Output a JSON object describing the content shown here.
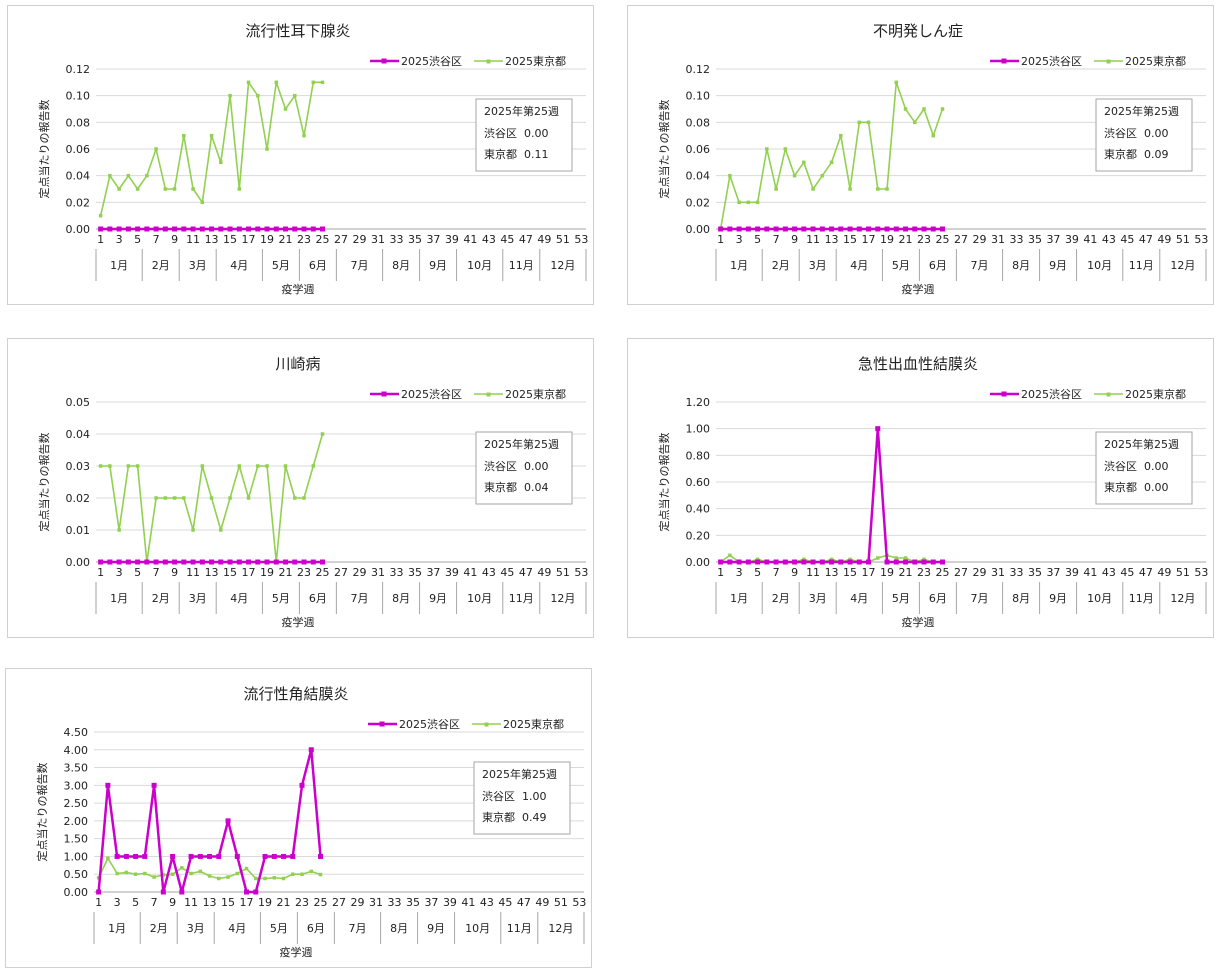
{
  "colors": {
    "shibuya": "#cc00cc",
    "tokyo": "#92d050",
    "grid": "#d9d9d9",
    "axis": "#a6a6a6",
    "text": "#222222"
  },
  "common": {
    "x_label": "疫学週",
    "y_label": "定点当たりの報告数",
    "legend_shibuya": "2025渋谷区",
    "legend_tokyo": "2025東京都",
    "months": [
      "1月",
      "2月",
      "3月",
      "4月",
      "5月",
      "6月",
      "7月",
      "8月",
      "9月",
      "10月",
      "11月",
      "12月"
    ],
    "week_ticks": [
      "1",
      "3",
      "5",
      "7",
      "9",
      "11",
      "13",
      "15",
      "17",
      "19",
      "21",
      "23",
      "25",
      "27",
      "29",
      "31",
      "33",
      "35",
      "37",
      "39",
      "41",
      "43",
      "45",
      "47",
      "49",
      "51",
      "53"
    ]
  },
  "chart_data": [
    {
      "type": "line",
      "title": "流行性耳下腺炎",
      "xlabel": "疫学週",
      "ylabel": "定点当たりの報告数",
      "ylim": [
        0,
        0.12
      ],
      "yticks": [
        "0.00",
        "0.02",
        "0.04",
        "0.06",
        "0.08",
        "0.10",
        "0.12"
      ],
      "x": [
        1,
        2,
        3,
        4,
        5,
        6,
        7,
        8,
        9,
        10,
        11,
        12,
        13,
        14,
        15,
        16,
        17,
        18,
        19,
        20,
        21,
        22,
        23,
        24,
        25
      ],
      "series": [
        {
          "name": "2025渋谷区",
          "values": [
            0,
            0,
            0,
            0,
            0,
            0,
            0,
            0,
            0,
            0,
            0,
            0,
            0,
            0,
            0,
            0,
            0,
            0,
            0,
            0,
            0,
            0,
            0,
            0,
            0
          ]
        },
        {
          "name": "2025東京都",
          "values": [
            0.01,
            0.04,
            0.03,
            0.04,
            0.03,
            0.04,
            0.06,
            0.03,
            0.03,
            0.07,
            0.03,
            0.02,
            0.07,
            0.05,
            0.1,
            0.03,
            0.11,
            0.1,
            0.06,
            0.11,
            0.09,
            0.1,
            0.07,
            0.11,
            0.11
          ]
        }
      ],
      "info": {
        "heading": "2025年第25週",
        "shibuya_label": "渋谷区",
        "shibuya_value": "0.00",
        "tokyo_label": "東京都",
        "tokyo_value": "0.11"
      }
    },
    {
      "type": "line",
      "title": "不明発しん症",
      "xlabel": "疫学週",
      "ylabel": "定点当たりの報告数",
      "ylim": [
        0,
        0.12
      ],
      "yticks": [
        "0.00",
        "0.02",
        "0.04",
        "0.06",
        "0.08",
        "0.10",
        "0.12"
      ],
      "x": [
        1,
        2,
        3,
        4,
        5,
        6,
        7,
        8,
        9,
        10,
        11,
        12,
        13,
        14,
        15,
        16,
        17,
        18,
        19,
        20,
        21,
        22,
        23,
        24,
        25
      ],
      "series": [
        {
          "name": "2025渋谷区",
          "values": [
            0,
            0,
            0,
            0,
            0,
            0,
            0,
            0,
            0,
            0,
            0,
            0,
            0,
            0,
            0,
            0,
            0,
            0,
            0,
            0,
            0,
            0,
            0,
            0,
            0
          ]
        },
        {
          "name": "2025東京都",
          "values": [
            0,
            0.04,
            0.02,
            0.02,
            0.02,
            0.06,
            0.03,
            0.06,
            0.04,
            0.05,
            0.03,
            0.04,
            0.05,
            0.07,
            0.03,
            0.08,
            0.08,
            0.03,
            0.03,
            0.11,
            0.09,
            0.08,
            0.09,
            0.07,
            0.09
          ]
        }
      ],
      "info": {
        "heading": "2025年第25週",
        "shibuya_label": "渋谷区",
        "shibuya_value": "0.00",
        "tokyo_label": "東京都",
        "tokyo_value": "0.09"
      }
    },
    {
      "type": "line",
      "title": "川崎病",
      "xlabel": "疫学週",
      "ylabel": "定点当たりの報告数",
      "ylim": [
        0,
        0.05
      ],
      "yticks": [
        "0.00",
        "0.01",
        "0.02",
        "0.03",
        "0.04",
        "0.05"
      ],
      "x": [
        1,
        2,
        3,
        4,
        5,
        6,
        7,
        8,
        9,
        10,
        11,
        12,
        13,
        14,
        15,
        16,
        17,
        18,
        19,
        20,
        21,
        22,
        23,
        24,
        25
      ],
      "series": [
        {
          "name": "2025渋谷区",
          "values": [
            0,
            0,
            0,
            0,
            0,
            0,
            0,
            0,
            0,
            0,
            0,
            0,
            0,
            0,
            0,
            0,
            0,
            0,
            0,
            0,
            0,
            0,
            0,
            0,
            0
          ]
        },
        {
          "name": "2025東京都",
          "values": [
            0.03,
            0.03,
            0.01,
            0.03,
            0.03,
            0,
            0.02,
            0.02,
            0.02,
            0.02,
            0.01,
            0.03,
            0.02,
            0.01,
            0.02,
            0.03,
            0.02,
            0.03,
            0.03,
            0,
            0.03,
            0.02,
            0.02,
            0.03,
            0.04
          ]
        }
      ],
      "info": {
        "heading": "2025年第25週",
        "shibuya_label": "渋谷区",
        "shibuya_value": "0.00",
        "tokyo_label": "東京都",
        "tokyo_value": "0.04"
      }
    },
    {
      "type": "line",
      "title": "急性出血性結膜炎",
      "xlabel": "疫学週",
      "ylabel": "定点当たりの報告数",
      "ylim": [
        0,
        1.2
      ],
      "yticks": [
        "0.00",
        "0.20",
        "0.40",
        "0.60",
        "0.80",
        "1.00",
        "1.20"
      ],
      "x": [
        1,
        2,
        3,
        4,
        5,
        6,
        7,
        8,
        9,
        10,
        11,
        12,
        13,
        14,
        15,
        16,
        17,
        18,
        19,
        20,
        21,
        22,
        23,
        24,
        25
      ],
      "series": [
        {
          "name": "2025渋谷区",
          "values": [
            0,
            0,
            0,
            0,
            0,
            0,
            0,
            0,
            0,
            0,
            0,
            0,
            0,
            0,
            0,
            0,
            0,
            1.0,
            0,
            0,
            0,
            0,
            0,
            0,
            0
          ]
        },
        {
          "name": "2025東京都",
          "values": [
            0,
            0.05,
            0,
            0,
            0.02,
            0,
            0,
            0,
            0,
            0.02,
            0,
            0,
            0.02,
            0,
            0.02,
            0,
            0,
            0.03,
            0.05,
            0.03,
            0.03,
            0,
            0.02,
            0,
            0
          ]
        }
      ],
      "info": {
        "heading": "2025年第25週",
        "shibuya_label": "渋谷区",
        "shibuya_value": "0.00",
        "tokyo_label": "東京都",
        "tokyo_value": "0.00"
      }
    },
    {
      "type": "line",
      "title": "流行性角結膜炎",
      "xlabel": "疫学週",
      "ylabel": "定点当たりの報告数",
      "ylim": [
        0,
        4.5
      ],
      "yticks": [
        "0.00",
        "0.50",
        "1.00",
        "1.50",
        "2.00",
        "2.50",
        "3.00",
        "3.50",
        "4.00",
        "4.50"
      ],
      "x": [
        1,
        2,
        3,
        4,
        5,
        6,
        7,
        8,
        9,
        10,
        11,
        12,
        13,
        14,
        15,
        16,
        17,
        18,
        19,
        20,
        21,
        22,
        23,
        24,
        25
      ],
      "series": [
        {
          "name": "2025渋谷区",
          "values": [
            0,
            3,
            1,
            1,
            1,
            1,
            3,
            0,
            1,
            0,
            1,
            1,
            1,
            1,
            2,
            1,
            0,
            0,
            1,
            1,
            1,
            1,
            3,
            4,
            1
          ]
        },
        {
          "name": "2025東京都",
          "values": [
            0.4,
            0.95,
            0.52,
            0.55,
            0.5,
            0.52,
            0.42,
            0.48,
            0.5,
            0.68,
            0.52,
            0.58,
            0.45,
            0.38,
            0.42,
            0.52,
            0.66,
            0.38,
            0.38,
            0.4,
            0.38,
            0.5,
            0.5,
            0.58,
            0.49
          ]
        }
      ],
      "info": {
        "heading": "2025年第25週",
        "shibuya_label": "渋谷区",
        "shibuya_value": "1.00",
        "tokyo_label": "東京都",
        "tokyo_value": "0.49"
      }
    }
  ]
}
